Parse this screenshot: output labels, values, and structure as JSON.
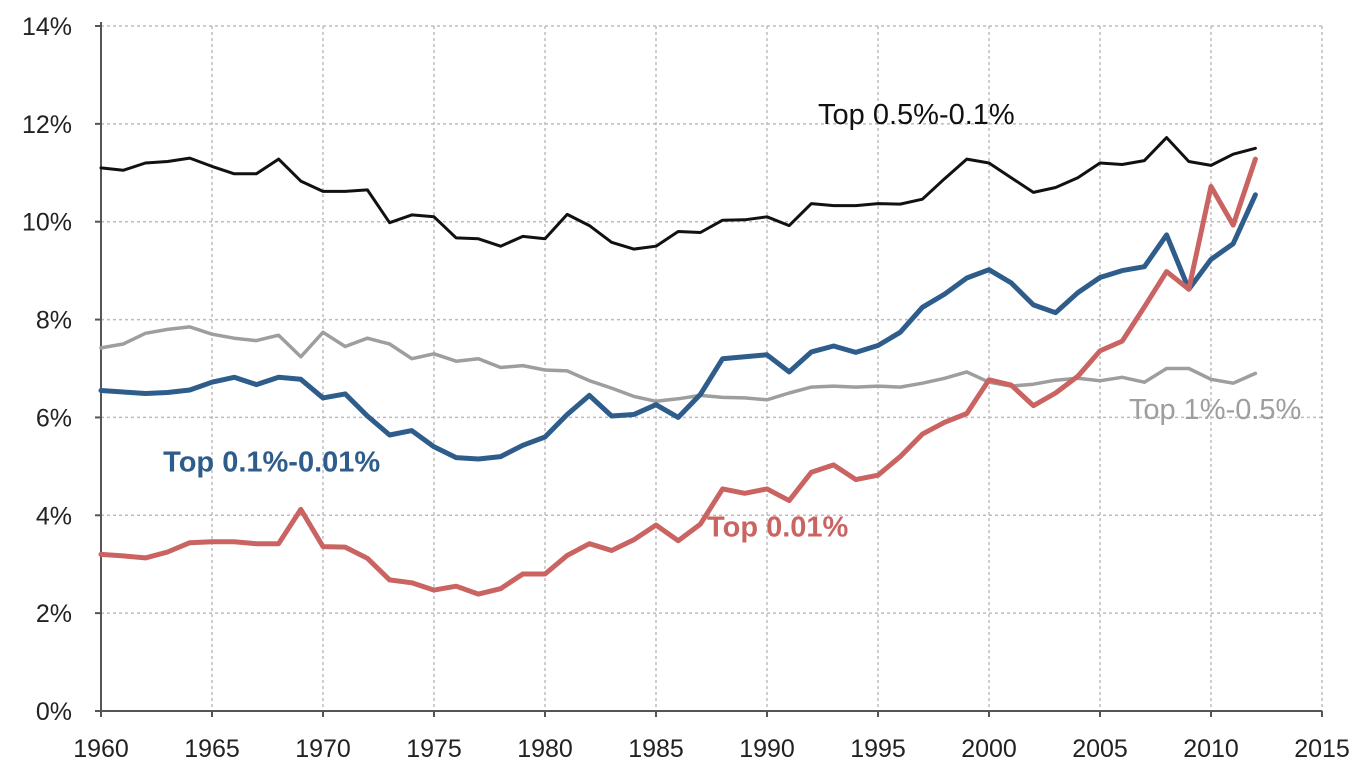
{
  "chart_data": {
    "type": "line",
    "title": "",
    "xlabel": "",
    "ylabel": "",
    "xlim": [
      1960,
      2015
    ],
    "ylim": [
      0,
      14
    ],
    "grid": true,
    "x_ticks": [
      1960,
      1965,
      1970,
      1975,
      1980,
      1985,
      1990,
      1995,
      2000,
      2005,
      2010,
      2015
    ],
    "x_tick_labels": [
      "1960",
      "1965",
      "1970",
      "1975",
      "1980",
      "1985",
      "1990",
      "1995",
      "2000",
      "2005",
      "2010",
      "2015"
    ],
    "y_ticks": [
      0,
      2,
      4,
      6,
      8,
      10,
      12,
      14
    ],
    "y_tick_labels": [
      "0%",
      "2%",
      "4%",
      "6%",
      "8%",
      "10%",
      "12%",
      "14%"
    ],
    "x": [
      1960,
      1961,
      1962,
      1963,
      1964,
      1965,
      1966,
      1967,
      1968,
      1969,
      1970,
      1971,
      1972,
      1973,
      1974,
      1975,
      1976,
      1977,
      1978,
      1979,
      1980,
      1981,
      1982,
      1983,
      1984,
      1985,
      1986,
      1987,
      1988,
      1989,
      1990,
      1991,
      1992,
      1993,
      1994,
      1995,
      1996,
      1997,
      1998,
      1999,
      2000,
      2001,
      2002,
      2003,
      2004,
      2005,
      2006,
      2007,
      2008,
      2009,
      2010,
      2011,
      2012
    ],
    "series": [
      {
        "name": "Top 0.5%-0.1%",
        "color": "#111111",
        "stroke_weight": "thin",
        "values": [
          11.1,
          11.05,
          11.2,
          11.23,
          11.3,
          11.13,
          10.98,
          10.98,
          11.28,
          10.83,
          10.62,
          10.62,
          10.65,
          9.98,
          10.14,
          10.1,
          9.67,
          9.65,
          9.5,
          9.7,
          9.65,
          10.15,
          9.92,
          9.58,
          9.44,
          9.5,
          9.8,
          9.78,
          10.03,
          10.04,
          10.1,
          9.92,
          10.37,
          10.33,
          10.33,
          10.37,
          10.36,
          10.46,
          10.88,
          11.28,
          11.2,
          10.9,
          10.6,
          10.7,
          10.9,
          11.2,
          11.17,
          11.25,
          11.72,
          11.23,
          11.15,
          11.38,
          11.5
        ]
      },
      {
        "name": "Top 0.1%-0.01%",
        "color": "#2e5d8c",
        "stroke_weight": "thick",
        "values": [
          6.55,
          6.52,
          6.49,
          6.51,
          6.56,
          6.72,
          6.82,
          6.67,
          6.82,
          6.78,
          6.4,
          6.48,
          6.03,
          5.64,
          5.73,
          5.4,
          5.18,
          5.15,
          5.2,
          5.43,
          5.6,
          6.06,
          6.45,
          6.03,
          6.06,
          6.26,
          6.0,
          6.47,
          7.2,
          7.24,
          7.28,
          6.93,
          7.34,
          7.46,
          7.33,
          7.47,
          7.74,
          8.25,
          8.52,
          8.85,
          9.02,
          8.75,
          8.3,
          8.14,
          8.55,
          8.86,
          9.0,
          9.08,
          9.73,
          8.62,
          9.23,
          9.55,
          10.55
        ]
      },
      {
        "name": "Top 1%-0.5%",
        "color": "#9e9e9e",
        "stroke_weight": "medium",
        "values": [
          7.42,
          7.5,
          7.72,
          7.8,
          7.85,
          7.7,
          7.62,
          7.57,
          7.68,
          7.24,
          7.74,
          7.45,
          7.62,
          7.5,
          7.2,
          7.3,
          7.15,
          7.2,
          7.02,
          7.06,
          6.97,
          6.95,
          6.75,
          6.6,
          6.43,
          6.33,
          6.38,
          6.45,
          6.41,
          6.4,
          6.36,
          6.5,
          6.62,
          6.64,
          6.62,
          6.64,
          6.62,
          6.7,
          6.8,
          6.93,
          6.72,
          6.64,
          6.68,
          6.76,
          6.8,
          6.75,
          6.82,
          6.72,
          7.0,
          7.0,
          6.78,
          6.7,
          6.9
        ]
      },
      {
        "name": "Top 0.01%",
        "color": "#c96462",
        "stroke_weight": "thick",
        "values": [
          3.2,
          3.17,
          3.13,
          3.25,
          3.44,
          3.46,
          3.46,
          3.42,
          3.42,
          4.12,
          3.36,
          3.35,
          3.12,
          2.68,
          2.62,
          2.47,
          2.55,
          2.39,
          2.5,
          2.8,
          2.8,
          3.18,
          3.42,
          3.28,
          3.5,
          3.8,
          3.48,
          3.82,
          4.54,
          4.45,
          4.54,
          4.3,
          4.88,
          5.03,
          4.73,
          4.82,
          5.2,
          5.66,
          5.9,
          6.08,
          6.77,
          6.66,
          6.24,
          6.5,
          6.84,
          7.36,
          7.56,
          8.26,
          8.98,
          8.62,
          10.72,
          9.93,
          11.28
        ]
      }
    ],
    "annotations": [
      {
        "text": "Top 0.5%-0.1%",
        "color": "#111111",
        "bold": false,
        "x": 1992.3,
        "y": 12.0
      },
      {
        "text": "Top 0.1%-0.01%",
        "color": "#2e5d8c",
        "bold": true,
        "x": 1962.8,
        "y": 4.9
      },
      {
        "text": "Top 1%-0.5%",
        "color": "#9e9e9e",
        "bold": false,
        "x": 2006.3,
        "y": 5.97
      },
      {
        "text": "Top 0.01%",
        "color": "#c96462",
        "bold": true,
        "x": 1987.3,
        "y": 3.57
      }
    ]
  }
}
